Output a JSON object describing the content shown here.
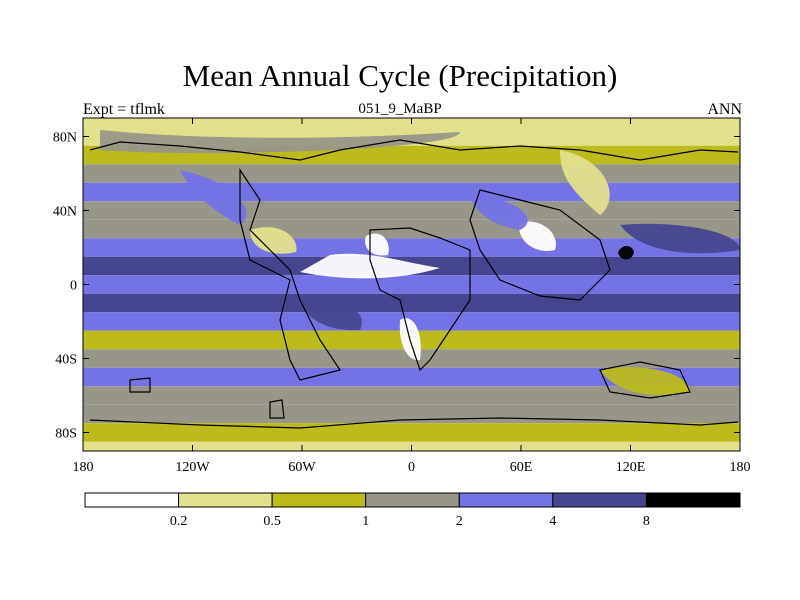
{
  "chart_data": {
    "type": "heatmap",
    "title": "Mean Annual Cycle (Precipitation)",
    "subtitle": "051_9_MaBP",
    "left_label": "Expt = tflmk",
    "right_label": "ANN",
    "x_ticks": [
      {
        "value": -180,
        "label": "180"
      },
      {
        "value": -120,
        "label": "120W"
      },
      {
        "value": -60,
        "label": "60W"
      },
      {
        "value": 0,
        "label": "0"
      },
      {
        "value": 60,
        "label": "60E"
      },
      {
        "value": 120,
        "label": "120E"
      },
      {
        "value": 180,
        "label": "180"
      }
    ],
    "y_ticks": [
      {
        "value": 80,
        "label": "80N"
      },
      {
        "value": 40,
        "label": "40N"
      },
      {
        "value": 0,
        "label": "0"
      },
      {
        "value": -40,
        "label": "40S"
      },
      {
        "value": -80,
        "label": "80S"
      }
    ],
    "xlim": [
      -180,
      180
    ],
    "ylim": [
      -90,
      90
    ],
    "colorbar": {
      "colors": [
        "#ffffff",
        "#e3e08c",
        "#bdbb1c",
        "#989689",
        "#7373e6",
        "#464690",
        "#000000"
      ],
      "labels": [
        "0.2",
        "0.5",
        "1",
        "2",
        "4",
        "8"
      ]
    },
    "zonal_profile": [
      {
        "lat": 90,
        "value": 0.3
      },
      {
        "lat": 80,
        "value": 0.4
      },
      {
        "lat": 70,
        "value": 0.9
      },
      {
        "lat": 60,
        "value": 1.6
      },
      {
        "lat": 50,
        "value": 2.2
      },
      {
        "lat": 40,
        "value": 1.8
      },
      {
        "lat": 30,
        "value": 1.2
      },
      {
        "lat": 20,
        "value": 3.5
      },
      {
        "lat": 10,
        "value": 5.5
      },
      {
        "lat": 0,
        "value": 3.0
      },
      {
        "lat": -10,
        "value": 5.0
      },
      {
        "lat": -20,
        "value": 2.5
      },
      {
        "lat": -30,
        "value": 0.9
      },
      {
        "lat": -40,
        "value": 1.5
      },
      {
        "lat": -50,
        "value": 2.3
      },
      {
        "lat": -60,
        "value": 1.6
      },
      {
        "lat": -70,
        "value": 1.0
      },
      {
        "lat": -80,
        "value": 0.5
      },
      {
        "lat": -90,
        "value": 0.3
      }
    ]
  }
}
